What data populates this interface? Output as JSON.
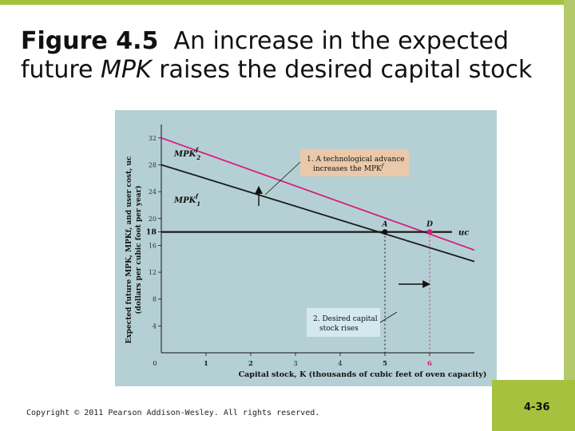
{
  "slide": {
    "title_bold": "Figure 4.5",
    "title_part1": "An increase in the expected future ",
    "title_italic": "MPK",
    "title_part2": " raises the desired capital stock",
    "copyright": "Copyright © 2011 Pearson Addison-Wesley. All rights reserved.",
    "page_number": "4-36"
  },
  "colors": {
    "panel": "#b5d0d4",
    "accent_green": "#a6c13e",
    "mpk2": "#d81b7e",
    "mpk1": "#1a1a1a",
    "uc": "#1a1a1a",
    "annotation_fill": "#e9c9a9"
  },
  "chart_data": {
    "type": "line",
    "xlabel": "Capital stock, K (thousands of cubic feet of oven capacity)",
    "ylabel_line1": "Expected future MPK, MPKf, and user cost, uc",
    "ylabel_line2": "(dollars per cubic foot per year)",
    "xlim": [
      0,
      7
    ],
    "ylim": [
      0,
      34
    ],
    "x_ticks": [
      "0",
      "1",
      "2",
      "3",
      "4",
      "5",
      "6"
    ],
    "y_ticks": [
      "4",
      "8",
      "12",
      "16",
      "18",
      "20",
      "24",
      "28",
      "32"
    ],
    "series": [
      {
        "name": "MPK2f",
        "label_base": "MPK",
        "label_sub": "2",
        "label_sup": "f",
        "x": [
          0,
          7
        ],
        "y": [
          32,
          15.3
        ]
      },
      {
        "name": "MPK1f",
        "label_base": "MPK",
        "label_sub": "1",
        "label_sup": "f",
        "x": [
          0,
          7
        ],
        "y": [
          28,
          13.6
        ]
      },
      {
        "name": "uc",
        "label": "uc",
        "x": [
          0,
          6.5
        ],
        "y": [
          18,
          18
        ]
      }
    ],
    "points": [
      {
        "label": "A",
        "x": 5,
        "y": 18
      },
      {
        "label": "D",
        "x": 6,
        "y": 18
      }
    ],
    "annotations": [
      {
        "text_line1": "1. A technological advance",
        "text_line2_base": "increases the MPK",
        "text_line2_sup": "f"
      },
      {
        "text_line1": "2. Desired capital",
        "text_line2": "stock rises"
      }
    ]
  }
}
